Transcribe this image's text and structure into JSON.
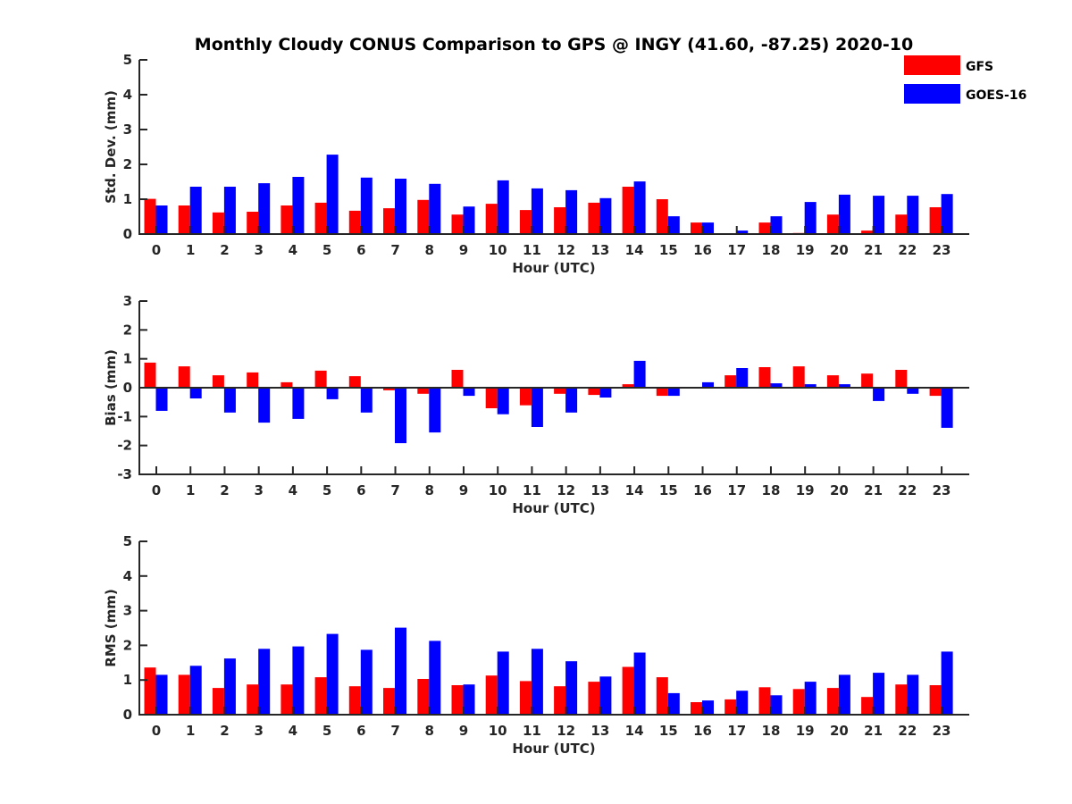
{
  "chart_data": {
    "title": "Monthly Cloudy CONUS Comparison to GPS @ INGY (41.60, -87.25) 2020-10",
    "legend": {
      "placement": "top-right",
      "entries": [
        {
          "name": "GFS",
          "color": "#ff0000"
        },
        {
          "name": "GOES-16",
          "color": "#0000ff"
        }
      ]
    },
    "panels": [
      {
        "type": "bar",
        "ylabel": "Std. Dev. (mm)",
        "xlabel": "Hour (UTC)",
        "ylim": [
          0,
          5
        ],
        "yticks": [
          "0",
          "1",
          "2",
          "3",
          "4",
          "5"
        ],
        "grid": false,
        "categories": [
          "0",
          "1",
          "2",
          "3",
          "4",
          "5",
          "6",
          "7",
          "8",
          "9",
          "10",
          "11",
          "12",
          "13",
          "14",
          "15",
          "16",
          "17",
          "18",
          "19",
          "20",
          "21",
          "22",
          "23"
        ],
        "series": [
          {
            "name": "GFS",
            "values": [
              1.01,
              0.82,
              0.62,
              0.64,
              0.82,
              0.9,
              0.67,
              0.74,
              0.98,
              0.56,
              0.87,
              0.69,
              0.77,
              0.9,
              1.36,
              1.0,
              0.33,
              0.0,
              0.33,
              0.03,
              0.56,
              0.1,
              0.56,
              0.77
            ]
          },
          {
            "name": "GOES-16",
            "values": [
              0.82,
              1.36,
              1.36,
              1.46,
              1.64,
              2.28,
              1.62,
              1.59,
              1.44,
              0.79,
              1.54,
              1.31,
              1.26,
              1.03,
              1.51,
              0.51,
              0.33,
              0.1,
              0.51,
              0.92,
              1.13,
              1.1,
              1.1,
              1.15
            ]
          }
        ]
      },
      {
        "type": "bar",
        "ylabel": "Bias (mm)",
        "xlabel": "Hour (UTC)",
        "ylim": [
          -3,
          3
        ],
        "yticks": [
          "-3",
          "-2",
          "-1",
          "0",
          "1",
          "2",
          "3"
        ],
        "grid": false,
        "categories": [
          "0",
          "1",
          "2",
          "3",
          "4",
          "5",
          "6",
          "7",
          "8",
          "9",
          "10",
          "11",
          "12",
          "13",
          "14",
          "15",
          "16",
          "17",
          "18",
          "19",
          "20",
          "21",
          "22",
          "23"
        ],
        "series": [
          {
            "name": "GFS",
            "values": [
              0.87,
              0.74,
              0.43,
              0.53,
              0.19,
              0.59,
              0.4,
              -0.09,
              -0.21,
              0.62,
              -0.71,
              -0.61,
              -0.21,
              -0.25,
              0.12,
              -0.28,
              0.0,
              0.43,
              0.71,
              0.74,
              0.43,
              0.49,
              0.62,
              -0.28
            ]
          },
          {
            "name": "GOES-16",
            "values": [
              -0.8,
              -0.37,
              -0.86,
              -1.21,
              -1.08,
              -0.4,
              -0.86,
              -1.92,
              -1.55,
              -0.28,
              -0.92,
              -1.36,
              -0.86,
              -0.34,
              0.93,
              -0.28,
              0.19,
              0.68,
              0.15,
              0.12,
              0.12,
              -0.46,
              -0.21,
              -1.39
            ]
          }
        ]
      },
      {
        "type": "bar",
        "ylabel": "RMS (mm)",
        "xlabel": "Hour (UTC)",
        "ylim": [
          0,
          5
        ],
        "yticks": [
          "0",
          "1",
          "2",
          "3",
          "4",
          "5"
        ],
        "grid": false,
        "categories": [
          "0",
          "1",
          "2",
          "3",
          "4",
          "5",
          "6",
          "7",
          "8",
          "9",
          "10",
          "11",
          "12",
          "13",
          "14",
          "15",
          "16",
          "17",
          "18",
          "19",
          "20",
          "21",
          "22",
          "23"
        ],
        "series": [
          {
            "name": "GFS",
            "values": [
              1.36,
              1.15,
              0.77,
              0.87,
              0.87,
              1.08,
              0.82,
              0.77,
              1.03,
              0.85,
              1.13,
              0.97,
              0.82,
              0.95,
              1.38,
              1.08,
              0.36,
              0.44,
              0.79,
              0.74,
              0.77,
              0.51,
              0.87,
              0.85
            ]
          },
          {
            "name": "GOES-16",
            "values": [
              1.15,
              1.41,
              1.62,
              1.9,
              1.97,
              2.33,
              1.87,
              2.51,
              2.13,
              0.87,
              1.82,
              1.9,
              1.54,
              1.1,
              1.79,
              0.62,
              0.41,
              0.69,
              0.56,
              0.95,
              1.15,
              1.21,
              1.15,
              1.82
            ]
          }
        ]
      }
    ]
  }
}
